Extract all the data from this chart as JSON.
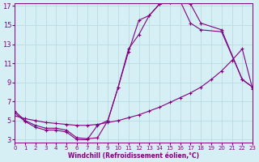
{
  "xlabel": "Windchill (Refroidissement éolien,°C)",
  "bg_color": "#d6eff5",
  "grid_color": "#b8dde0",
  "line_color": "#800080",
  "xmin": 0,
  "xmax": 23,
  "ymin": 3,
  "ymax": 17,
  "yticks": [
    3,
    5,
    7,
    9,
    11,
    13,
    15,
    17
  ],
  "xticks": [
    0,
    1,
    2,
    3,
    4,
    5,
    6,
    7,
    8,
    9,
    10,
    11,
    12,
    13,
    14,
    15,
    16,
    17,
    18,
    19,
    20,
    21,
    22,
    23
  ],
  "curve1_x": [
    0,
    1,
    2,
    3,
    4,
    5,
    6,
    7,
    8,
    9,
    10,
    11,
    12,
    13,
    14,
    15,
    16,
    17,
    18,
    20,
    22,
    23
  ],
  "curve1_y": [
    6.0,
    5.0,
    4.5,
    4.2,
    4.2,
    4.0,
    3.2,
    3.1,
    3.2,
    5.0,
    8.5,
    12.2,
    15.5,
    16.0,
    17.2,
    17.35,
    17.5,
    17.2,
    15.2,
    14.5,
    9.3,
    8.5
  ],
  "curve2_x": [
    0,
    1,
    2,
    3,
    4,
    5,
    6,
    7,
    8,
    9,
    10,
    11,
    12,
    13,
    14,
    15,
    16,
    17,
    18,
    19,
    20,
    21,
    22,
    23
  ],
  "curve2_y": [
    5.5,
    5.2,
    5.0,
    4.8,
    4.7,
    4.6,
    4.5,
    4.5,
    4.6,
    4.8,
    5.0,
    5.3,
    5.6,
    6.0,
    6.4,
    6.9,
    7.4,
    7.9,
    8.5,
    9.3,
    10.2,
    11.3,
    12.5,
    8.3
  ],
  "curve3_x": [
    0,
    1,
    2,
    3,
    4,
    5,
    6,
    7,
    8,
    9,
    10,
    11,
    12,
    13,
    14,
    15,
    16,
    17,
    18,
    20,
    22,
    23
  ],
  "curve3_y": [
    5.8,
    4.9,
    4.3,
    4.0,
    4.0,
    3.8,
    3.0,
    3.0,
    4.5,
    5.0,
    8.5,
    12.5,
    14.0,
    16.0,
    17.2,
    17.35,
    17.5,
    15.2,
    14.5,
    14.3,
    9.3,
    8.5
  ]
}
